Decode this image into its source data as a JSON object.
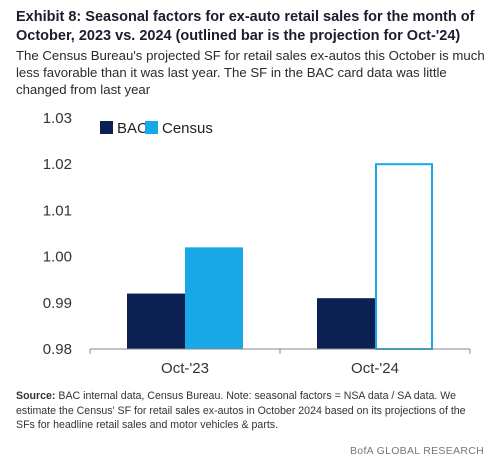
{
  "title": "Exhibit 8: Seasonal factors for ex-auto retail sales for the month of October, 2023 vs. 2024 (outlined bar is the projection for Oct-'24)",
  "subtitle": "The Census Bureau's projected SF for retail sales ex-autos this October is much less favorable than it was last year. The SF in the BAC card data was little changed from last year",
  "footnote": {
    "label": "Source:",
    "text": " BAC internal data, Census Bureau. Note: seasonal factors = NSA data / SA data. We estimate the Census' SF for retail sales ex-autos in October 2024 based on its projections of the SFs for headline retail sales and motor vehicles & parts."
  },
  "brand": "BofA GLOBAL RESEARCH",
  "colors": {
    "bac": "#0b2154",
    "census": "#18a8e8",
    "axis": "#888888"
  },
  "chart_data": {
    "type": "bar",
    "categories": [
      "Oct-'23",
      "Oct-'24"
    ],
    "series": [
      {
        "name": "BAC",
        "values": [
          0.992,
          0.991
        ]
      },
      {
        "name": "Census",
        "values": [
          1.002,
          1.02
        ]
      }
    ],
    "projection_outlined": {
      "series": "Census",
      "category": "Oct-'24"
    },
    "ylim": [
      0.98,
      1.03
    ],
    "yticks": [
      "0.98",
      "0.99",
      "1.00",
      "1.01",
      "1.02",
      "1.03"
    ],
    "legend_position": "top-left",
    "grid": false
  }
}
